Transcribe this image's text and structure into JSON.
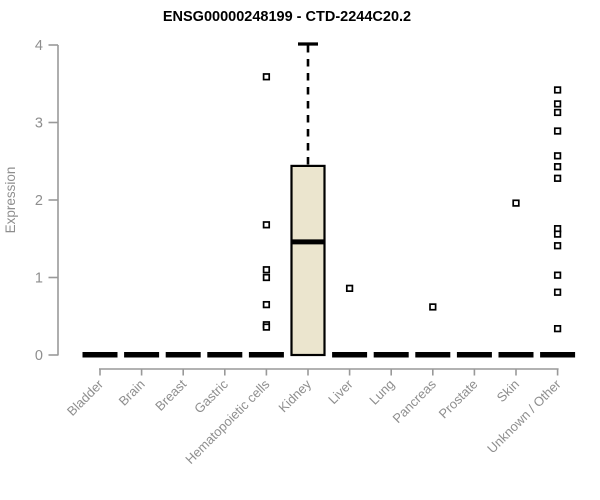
{
  "title": "ENSG00000248199 - CTD-2244C20.2",
  "colors": {
    "background": "#ffffff",
    "box_fill": "#EBE5CE",
    "box_border": "#000000",
    "median": "#000000",
    "whisker": "#000000",
    "outlier_border": "#000000",
    "axis_line": "#999999",
    "tick_label": "#8e8e8e",
    "axis_title": "#8e8e8e",
    "title_color": "#000000"
  },
  "chart_data": {
    "type": "boxplot",
    "title": "ENSG00000248199 - CTD-2244C20.2",
    "xlabel": "",
    "ylabel": "Expression",
    "ylim": [
      0,
      4
    ],
    "yticks": [
      0,
      1,
      2,
      3,
      4
    ],
    "grid": false,
    "legend": "none",
    "categories": [
      "Bladder",
      "Brain",
      "Breast",
      "Gastric",
      "Hematopoietic cells",
      "Kidney",
      "Liver",
      "Lung",
      "Pancreas",
      "Prostate",
      "Skin",
      "Unknown / Other"
    ],
    "series": [
      {
        "name": "Bladder",
        "whisker_low": 0,
        "q1": 0,
        "median": 0,
        "q3": 0,
        "whisker_high": 0,
        "outliers": []
      },
      {
        "name": "Brain",
        "whisker_low": 0,
        "q1": 0,
        "median": 0,
        "q3": 0,
        "whisker_high": 0,
        "outliers": []
      },
      {
        "name": "Breast",
        "whisker_low": 0,
        "q1": 0,
        "median": 0,
        "q3": 0,
        "whisker_high": 0,
        "outliers": []
      },
      {
        "name": "Gastric",
        "whisker_low": 0,
        "q1": 0,
        "median": 0,
        "q3": 0,
        "whisker_high": 0,
        "outliers": []
      },
      {
        "name": "Hematopoietic cells",
        "whisker_low": 0,
        "q1": 0,
        "median": 0,
        "q3": 0,
        "whisker_high": 0,
        "outliers": [
          3.59,
          1.68,
          1.1,
          1.0,
          0.65,
          0.39,
          0.36
        ]
      },
      {
        "name": "Kidney",
        "whisker_low": 0,
        "q1": 0,
        "median": 1.46,
        "q3": 2.44,
        "whisker_high": 4.0,
        "outliers": []
      },
      {
        "name": "Liver",
        "whisker_low": 0,
        "q1": 0,
        "median": 0,
        "q3": 0,
        "whisker_high": 0,
        "outliers": [
          0.86
        ]
      },
      {
        "name": "Lung",
        "whisker_low": 0,
        "q1": 0,
        "median": 0,
        "q3": 0,
        "whisker_high": 0,
        "outliers": []
      },
      {
        "name": "Pancreas",
        "whisker_low": 0,
        "q1": 0,
        "median": 0,
        "q3": 0,
        "whisker_high": 0,
        "outliers": [
          0.62
        ]
      },
      {
        "name": "Prostate",
        "whisker_low": 0,
        "q1": 0,
        "median": 0,
        "q3": 0,
        "whisker_high": 0,
        "outliers": []
      },
      {
        "name": "Skin",
        "whisker_low": 0,
        "q1": 0,
        "median": 0,
        "q3": 0,
        "whisker_high": 0,
        "outliers": [
          1.96
        ]
      },
      {
        "name": "Unknown / Other",
        "whisker_low": 0,
        "q1": 0,
        "median": 0,
        "q3": 0,
        "whisker_high": 0,
        "outliers": [
          3.42,
          3.24,
          3.13,
          2.89,
          2.57,
          2.43,
          2.28,
          1.63,
          1.56,
          1.41,
          1.03,
          0.81,
          0.34
        ]
      }
    ]
  }
}
